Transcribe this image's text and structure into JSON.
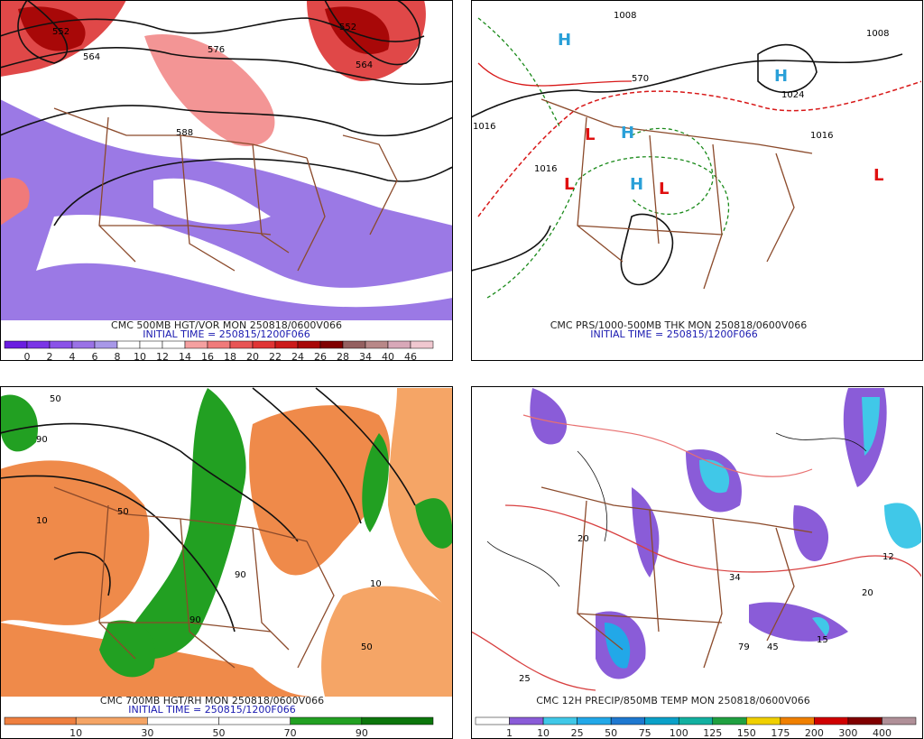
{
  "panels": [
    {
      "title": "CMC 500MB HGT/VOR MON 250818/0600V066",
      "initial_time": "INITIAL TIME = 250815/1200F066",
      "map_labels": [
        "552",
        "564",
        "576",
        "588",
        "552",
        "564"
      ],
      "colorbar": {
        "labels": [
          0,
          2,
          4,
          6,
          8,
          10,
          12,
          14,
          16,
          18,
          20,
          22,
          24,
          26,
          28,
          34,
          40,
          46
        ],
        "colors": [
          "#6a1de0",
          "#7a35e6",
          "#8a52e8",
          "#9a72e6",
          "#a898e8",
          "#ffffff",
          "#ffffff",
          "#ffffff",
          "#f5a0a0",
          "#f07a7a",
          "#e85555",
          "#e03535",
          "#cc1a1a",
          "#a80808",
          "#800000",
          "#946060",
          "#b88888",
          "#d8a8b8",
          "#f0c8d0"
        ]
      }
    },
    {
      "title": "CMC PRS/1000-500MB THK MON 250818/0600V066",
      "initial_time": "INITIAL TIME = 250815/1200F066",
      "map_labels": [
        "1008",
        "1008",
        "1016",
        "1016",
        "1016",
        "1024",
        "570",
        "H",
        "H",
        "H",
        "H",
        "L",
        "L",
        "L",
        "L"
      ]
    },
    {
      "title": "CMC 700MB HGT/RH MON 250818/0600V066",
      "initial_time": "INITIAL TIME = 250815/1200F066",
      "map_labels": [
        "50",
        "90",
        "90",
        "10",
        "50",
        "10",
        "50",
        "90"
      ],
      "colorbar": {
        "labels": [
          10,
          30,
          50,
          70,
          90
        ],
        "colors": [
          "#ef8040",
          "#f5a566",
          "#ffffff",
          "#ffffff",
          "#22a022",
          "#0c760c"
        ]
      }
    },
    {
      "title": "CMC 12H PRECIP/850MB TEMP MON 250818/0600V066",
      "map_labels": [
        "20",
        "20",
        "25",
        "12",
        "34",
        "79",
        "45",
        "15"
      ],
      "colorbar": {
        "labels": [
          1,
          10,
          25,
          50,
          75,
          100,
          125,
          150,
          175,
          200,
          300,
          400
        ],
        "colors": [
          "#ffffff",
          "#8a5cd8",
          "#40c8e8",
          "#22a8e8",
          "#1e78d0",
          "#0aa0c8",
          "#12b0a0",
          "#20a040",
          "#f0d000",
          "#f08000",
          "#d00000",
          "#800000",
          "#b09098"
        ]
      }
    }
  ]
}
